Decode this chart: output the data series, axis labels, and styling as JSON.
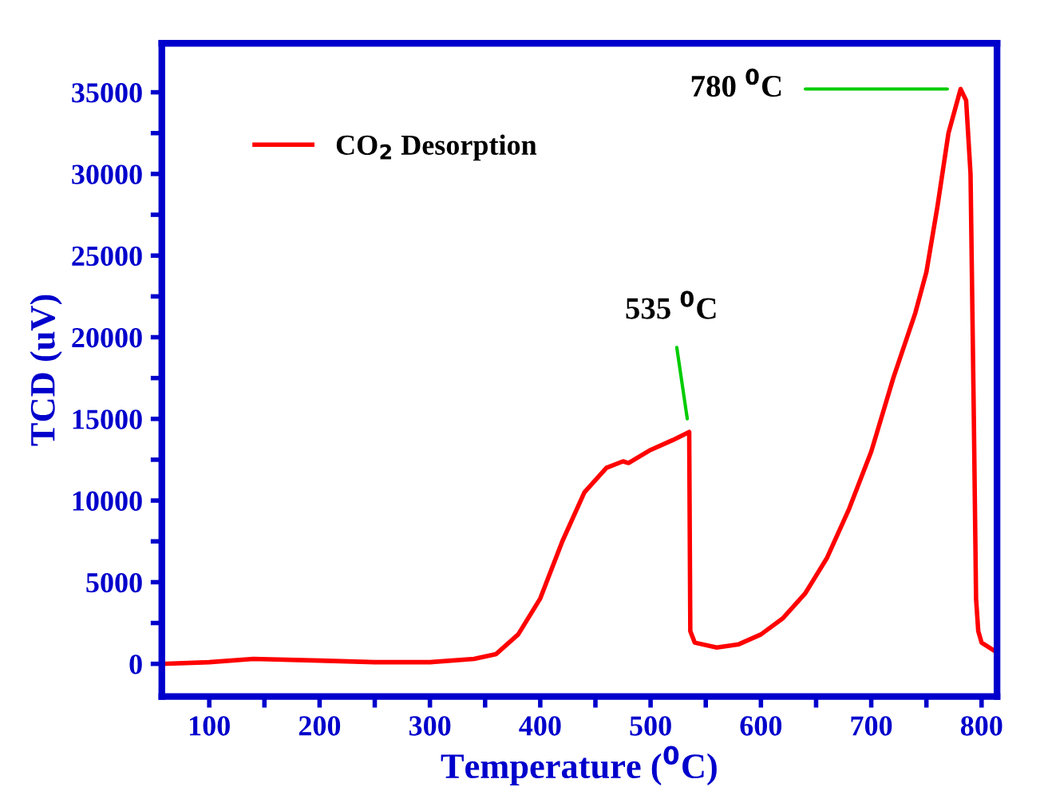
{
  "chart_data": {
    "type": "line",
    "xlabel": "Temperature ($^{0}$C)",
    "ylabel": "TCD (uV)",
    "xlim": [
      57,
      814
    ],
    "ylim": [
      -2000,
      38000
    ],
    "xticks": [
      100,
      {
        "value": 150,
        "label": null
      },
      200,
      {
        "value": 250,
        "label": null
      },
      300,
      {
        "value": 350,
        "label": null
      },
      400,
      {
        "value": 450,
        "label": null
      },
      500,
      {
        "value": 550,
        "label": null
      },
      600,
      {
        "value": 650,
        "label": null
      },
      700,
      {
        "value": 750,
        "label": null
      },
      800
    ],
    "yticks": [
      0,
      {
        "value": 2500,
        "label": null
      },
      5000,
      {
        "value": 7500,
        "label": null
      },
      10000,
      {
        "value": 12500,
        "label": null
      },
      15000,
      {
        "value": 17500,
        "label": null
      },
      20000,
      {
        "value": 22500,
        "label": null
      },
      25000,
      {
        "value": 27500,
        "label": null
      },
      30000,
      {
        "value": 32500,
        "label": null
      },
      35000
    ],
    "grid": false,
    "legend": "top left",
    "marker": "none",
    "line_style": "solid",
    "series": [
      {
        "name": "CO$_{2}$ Desorption",
        "color": "#ff0000",
        "x": [
          57,
          100,
          140,
          200,
          250,
          300,
          340,
          360,
          380,
          400,
          420,
          440,
          460,
          475,
          480,
          500,
          520,
          535,
          536,
          540,
          560,
          580,
          600,
          620,
          640,
          660,
          680,
          700,
          720,
          740,
          750,
          760,
          770,
          781,
          786,
          790,
          793,
          795,
          797,
          800,
          814
        ],
        "values": [
          0,
          100,
          300,
          200,
          100,
          100,
          300,
          600,
          1800,
          4000,
          7500,
          10500,
          12000,
          12400,
          12300,
          13100,
          13700,
          14200,
          2000,
          1300,
          1000,
          1200,
          1800,
          2800,
          4300,
          6500,
          9500,
          13000,
          17500,
          21500,
          24000,
          28000,
          32500,
          35200,
          34500,
          30000,
          15000,
          4000,
          2000,
          1300,
          700
        ]
      }
    ],
    "annotations": [
      {
        "text": "535 $^{0}$C",
        "x": 535,
        "y": 14200
      },
      {
        "text": "780 $^{0}$C",
        "x": 781,
        "y": 35200
      }
    ]
  }
}
